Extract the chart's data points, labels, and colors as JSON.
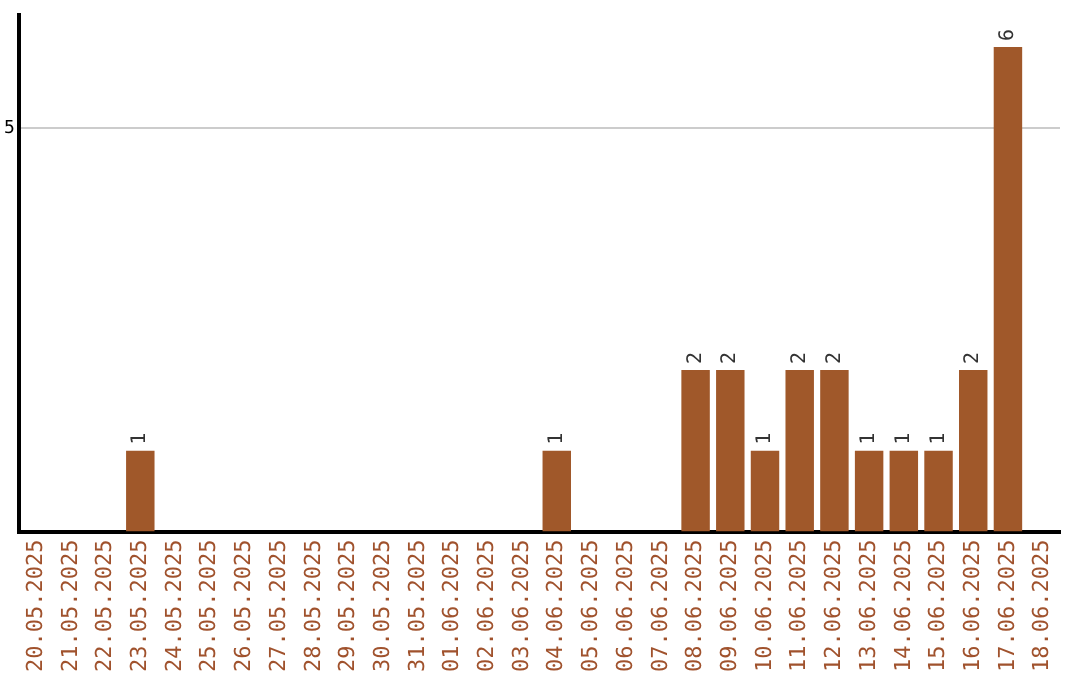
{
  "chart_data": {
    "type": "bar",
    "categories": [
      "20.05.2025",
      "21.05.2025",
      "22.05.2025",
      "23.05.2025",
      "24.05.2025",
      "25.05.2025",
      "26.05.2025",
      "27.05.2025",
      "28.05.2025",
      "29.05.2025",
      "30.05.2025",
      "31.05.2025",
      "01.06.2025",
      "02.06.2025",
      "03.06.2025",
      "04.06.2025",
      "05.06.2025",
      "06.06.2025",
      "07.06.2025",
      "08.06.2025",
      "09.06.2025",
      "10.06.2025",
      "11.06.2025",
      "12.06.2025",
      "13.06.2025",
      "14.06.2025",
      "15.06.2025",
      "16.06.2025",
      "17.06.2025",
      "18.06.2025"
    ],
    "values": [
      null,
      null,
      null,
      1,
      null,
      null,
      null,
      null,
      null,
      null,
      null,
      null,
      null,
      null,
      null,
      1,
      null,
      null,
      null,
      2,
      2,
      1,
      2,
      2,
      1,
      1,
      1,
      2,
      6,
      null
    ],
    "color": "#a0582a",
    "ylim": [
      0,
      6.4
    ],
    "yticks": [
      5
    ],
    "grid": "y",
    "data_labels": true
  }
}
